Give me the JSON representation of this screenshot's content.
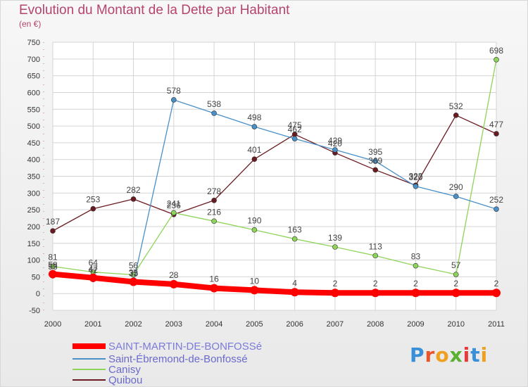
{
  "title": "Evolution du Montant de la Dette par Habitant",
  "unit": "(en €)",
  "logo": {
    "text": "Proxiti"
  },
  "chart_data": {
    "type": "line",
    "title": "Evolution du Montant de la Dette par Habitant",
    "ylabel": "(en €)",
    "x": [
      "2000",
      "2001",
      "2002",
      "2003",
      "2004",
      "2005",
      "2006",
      "2007",
      "2008",
      "2009",
      "2010",
      "2011"
    ],
    "ylim": [
      -50,
      750
    ],
    "yticks": [
      -50,
      0,
      50,
      100,
      150,
      200,
      250,
      300,
      350,
      400,
      450,
      500,
      550,
      600,
      650,
      700,
      750
    ],
    "grid": true,
    "legend_position": "bottom-left",
    "series": [
      {
        "name": "SAINT-MARTIN-DE-BONFOSSé",
        "color": "#ff0000",
        "values": [
          58,
          47,
          35,
          28,
          16,
          10,
          4,
          2,
          2,
          2,
          2,
          2
        ]
      },
      {
        "name": "Saint-Ébremond-de-Bonfossé",
        "color": "#4a90c8",
        "values": [
          53,
          42,
          33,
          578,
          538,
          498,
          462,
          429,
          395,
          320,
          290,
          252
        ]
      },
      {
        "name": "Canisy",
        "color": "#8fd45a",
        "values": [
          81,
          64,
          56,
          241,
          216,
          190,
          163,
          139,
          113,
          83,
          57,
          698
        ]
      },
      {
        "name": "Quibou",
        "color": "#6b1a22",
        "values": [
          187,
          253,
          282,
          236,
          278,
          401,
          475,
          420,
          369,
          323,
          532,
          477
        ]
      }
    ]
  }
}
